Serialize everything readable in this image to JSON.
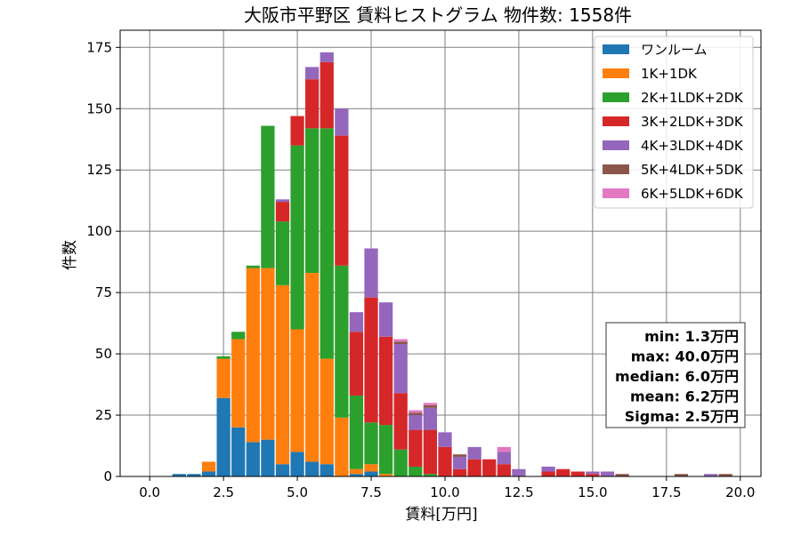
{
  "chart_data": {
    "type": "bar",
    "stacked": true,
    "title": "大阪市平野区 賃料ヒストグラム 物件数: 1558件",
    "xlabel": "賃料[万円]",
    "ylabel": "件数",
    "xlim": [
      -1.0,
      20.7
    ],
    "ylim": [
      0,
      182
    ],
    "xticks": [
      "0.0",
      "2.5",
      "5.0",
      "7.5",
      "10.0",
      "12.5",
      "15.0",
      "17.5",
      "20.0"
    ],
    "yticks": [
      "0",
      "25",
      "50",
      "75",
      "100",
      "125",
      "150",
      "175"
    ],
    "grid": true,
    "legend_position": "top-right",
    "bin_width": 0.5,
    "bin_centers": [
      1.0,
      1.5,
      2.0,
      2.5,
      3.0,
      3.5,
      4.0,
      4.5,
      5.0,
      5.5,
      6.0,
      6.5,
      7.0,
      7.5,
      8.0,
      8.5,
      9.0,
      9.5,
      10.0,
      10.5,
      11.0,
      11.5,
      12.0,
      12.5,
      13.0,
      13.5,
      14.0,
      14.5,
      15.0,
      15.5,
      16.0,
      16.5,
      17.0,
      17.5,
      18.0,
      18.5,
      19.0,
      19.5
    ],
    "series": [
      {
        "name": "ワンルーム",
        "color": "#1f77b4",
        "values": [
          1,
          1,
          2,
          32,
          20,
          14,
          15,
          5,
          10,
          6,
          5,
          0,
          1,
          2,
          0,
          0,
          0,
          0,
          0,
          0,
          0,
          0,
          0,
          0,
          0,
          0,
          0,
          0,
          0,
          0,
          0,
          0,
          0,
          0,
          0,
          0,
          0,
          0
        ]
      },
      {
        "name": "1K+1DK",
        "color": "#ff7f0e",
        "values": [
          0,
          0,
          4,
          16,
          36,
          71,
          70,
          73,
          50,
          77,
          43,
          24,
          2,
          3,
          1,
          0,
          0,
          0,
          0,
          0,
          0,
          0,
          0,
          0,
          0,
          0,
          0,
          0,
          0,
          0,
          0,
          0,
          0,
          0,
          0,
          0,
          0,
          0
        ]
      },
      {
        "name": "2K+1LDK+2DK",
        "color": "#2ca02c",
        "values": [
          0,
          0,
          0,
          1,
          3,
          1,
          58,
          26,
          75,
          59,
          94,
          62,
          30,
          17,
          20,
          11,
          4,
          1,
          0,
          0,
          0,
          0,
          0,
          0,
          0,
          0,
          0,
          0,
          0,
          0,
          0,
          0,
          0,
          0,
          0,
          0,
          0,
          0
        ]
      },
      {
        "name": "3K+2LDK+3DK",
        "color": "#d62728",
        "values": [
          0,
          0,
          0,
          0,
          0,
          0,
          0,
          8,
          12,
          20,
          27,
          53,
          26,
          51,
          36,
          23,
          15,
          18,
          12,
          3,
          7,
          7,
          5,
          0,
          0,
          2,
          3,
          2,
          1,
          0,
          0,
          0,
          0,
          0,
          0,
          0,
          0,
          0
        ]
      },
      {
        "name": "4K+3LDK+4DK",
        "color": "#9467bd",
        "values": [
          0,
          0,
          0,
          0,
          0,
          0,
          0,
          1,
          0,
          5,
          4,
          11,
          8,
          20,
          14,
          20,
          6,
          9,
          6,
          5,
          5,
          0,
          5,
          3,
          0,
          2,
          0,
          0,
          1,
          2,
          0,
          0,
          0,
          0,
          0,
          0,
          1,
          0
        ]
      },
      {
        "name": "5K+4LDK+5DK",
        "color": "#8c564b",
        "values": [
          0,
          0,
          0,
          0,
          0,
          0,
          0,
          0,
          0,
          0,
          0,
          0,
          0,
          0,
          0,
          1,
          1,
          1,
          0,
          1,
          0,
          0,
          0,
          0,
          0,
          0,
          0,
          0,
          0,
          0,
          1,
          0,
          0,
          0,
          1,
          0,
          0,
          1
        ]
      },
      {
        "name": "6K+5LDK+6DK",
        "color": "#e377c2",
        "values": [
          0,
          0,
          0,
          0,
          0,
          0,
          0,
          0,
          0,
          0,
          0,
          0,
          0,
          0,
          0,
          1,
          1,
          1,
          0,
          0,
          0,
          0,
          2,
          0,
          0,
          0,
          0,
          0,
          0,
          0,
          0,
          0,
          0,
          0,
          0,
          0,
          0,
          0
        ]
      }
    ],
    "stats": {
      "min": "min: 1.3万円",
      "max": "max: 40.0万円",
      "median": "median: 6.0万円",
      "mean": "mean: 6.2万円",
      "sigma": "Sigma: 2.5万円"
    }
  }
}
